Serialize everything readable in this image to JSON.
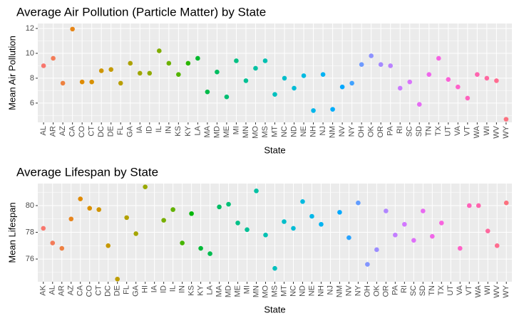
{
  "chart_data": [
    {
      "type": "scatter",
      "title": "Average Air Pollution (Particle Matter) by State",
      "x_label": "State",
      "y_label": "Mean Air Pollution",
      "categories": [
        "AL",
        "AR",
        "AZ",
        "CA",
        "CO",
        "CT",
        "DC",
        "DE",
        "FL",
        "GA",
        "IA",
        "ID",
        "IL",
        "IN",
        "KS",
        "KY",
        "LA",
        "MA",
        "MD",
        "ME",
        "MI",
        "MN",
        "MO",
        "MS",
        "MT",
        "NC",
        "ND",
        "NE",
        "NH",
        "NJ",
        "NM",
        "NV",
        "NY",
        "OH",
        "OK",
        "OR",
        "PA",
        "RI",
        "SC",
        "SD",
        "TN",
        "TX",
        "UT",
        "VA",
        "VT",
        "WA",
        "WI",
        "WV",
        "WY"
      ],
      "values": [
        9.0,
        9.6,
        7.6,
        11.95,
        7.7,
        7.7,
        8.6,
        8.7,
        7.6,
        9.2,
        8.4,
        8.4,
        10.2,
        9.2,
        8.3,
        9.2,
        9.6,
        6.9,
        8.5,
        6.5,
        9.4,
        7.8,
        8.8,
        9.4,
        6.7,
        8.0,
        7.2,
        8.2,
        5.4,
        8.3,
        5.5,
        7.3,
        7.6,
        9.1,
        9.8,
        9.1,
        9.0,
        7.2,
        7.7,
        5.9,
        8.3,
        9.6,
        7.9,
        7.3,
        6.4,
        8.3,
        8.0,
        7.8,
        4.7
      ],
      "ylim": [
        4.45,
        12.4
      ],
      "yticks": [
        6,
        8,
        10,
        12
      ],
      "grid": true,
      "color_scale": "hue"
    },
    {
      "type": "scatter",
      "title": "Average Lifespan by State",
      "x_label": "State",
      "y_label": "Mean Lifespan",
      "categories": [
        "AK",
        "AL",
        "AR",
        "AZ",
        "CA",
        "CO",
        "CT",
        "DC",
        "DE",
        "FL",
        "GA",
        "HI",
        "IA",
        "ID",
        "IL",
        "IN",
        "KS",
        "KY",
        "LA",
        "MA",
        "MD",
        "ME",
        "MI",
        "MN",
        "MO",
        "MS",
        "MT",
        "NC",
        "ND",
        "NE",
        "NH",
        "NJ",
        "NM",
        "NV",
        "NY",
        "OH",
        "OK",
        "OR",
        "PA",
        "RI",
        "SC",
        "SD",
        "TN",
        "TX",
        "UT",
        "VA",
        "VT",
        "WA",
        "WI",
        "WV",
        "WY"
      ],
      "values": [
        78.3,
        77.2,
        76.8,
        79.0,
        80.5,
        79.8,
        79.7,
        77.0,
        74.5,
        79.1,
        77.9,
        81.4,
        null,
        78.9,
        79.7,
        77.2,
        79.4,
        76.8,
        76.4,
        79.9,
        80.1,
        78.7,
        78.2,
        81.1,
        77.8,
        75.3,
        78.8,
        78.3,
        80.3,
        79.2,
        78.6,
        null,
        79.5,
        77.6,
        80.2,
        75.6,
        76.7,
        79.6,
        77.8,
        78.6,
        77.4,
        79.6,
        77.7,
        78.7,
        null,
        76.8,
        80.0,
        80.0,
        78.1,
        77.0,
        80.2
      ],
      "ylim": [
        74.3,
        81.65
      ],
      "yticks": [
        76,
        78,
        80
      ],
      "grid": true,
      "color_scale": "hue"
    }
  ]
}
